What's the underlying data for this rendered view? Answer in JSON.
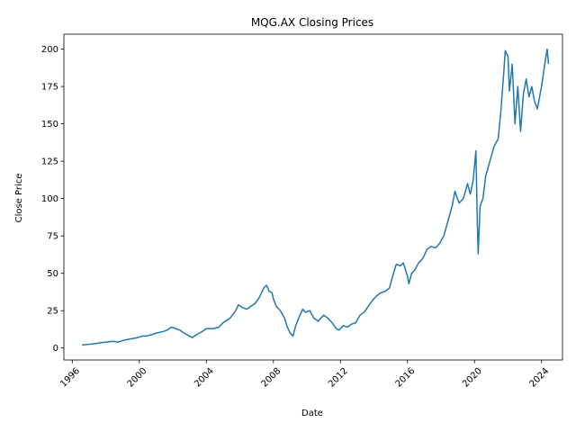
{
  "chart_data": {
    "type": "line",
    "title": "MQG.AX Closing Prices",
    "xlabel": "Date",
    "ylabel": "Close Price",
    "xlim": [
      "1995-07-01",
      "2025-04-01"
    ],
    "ylim": [
      -8,
      210
    ],
    "x_ticks": [
      "1996",
      "2000",
      "2004",
      "2008",
      "2012",
      "2016",
      "2020",
      "2024"
    ],
    "y_ticks": [
      0,
      25,
      50,
      75,
      100,
      125,
      150,
      175,
      200
    ],
    "grid": false,
    "line_color": "#1f77b4",
    "series": [
      {
        "points": [
          [
            "1996-08-01",
            2
          ],
          [
            "1997-01-01",
            2.5
          ],
          [
            "1997-06-01",
            3
          ],
          [
            "1997-09-01",
            3.5
          ],
          [
            "1998-01-01",
            4
          ],
          [
            "1998-06-01",
            4.5
          ],
          [
            "1998-10-01",
            4
          ],
          [
            "1999-01-01",
            5
          ],
          [
            "1999-06-01",
            6
          ],
          [
            "1999-12-01",
            7
          ],
          [
            "2000-03-01",
            8
          ],
          [
            "2000-06-01",
            8
          ],
          [
            "2000-10-01",
            9
          ],
          [
            "2001-01-01",
            10
          ],
          [
            "2001-06-01",
            11
          ],
          [
            "2001-09-01",
            12
          ],
          [
            "2001-12-01",
            14
          ],
          [
            "2002-03-01",
            13
          ],
          [
            "2002-06-01",
            12
          ],
          [
            "2002-09-01",
            10
          ],
          [
            "2003-01-01",
            8
          ],
          [
            "2003-03-01",
            7
          ],
          [
            "2003-06-01",
            9
          ],
          [
            "2003-10-01",
            11
          ],
          [
            "2004-01-01",
            13
          ],
          [
            "2004-06-01",
            13
          ],
          [
            "2004-10-01",
            14
          ],
          [
            "2005-01-01",
            17
          ],
          [
            "2005-06-01",
            20
          ],
          [
            "2005-10-01",
            25
          ],
          [
            "2005-12-01",
            29
          ],
          [
            "2006-03-01",
            27
          ],
          [
            "2006-06-01",
            26
          ],
          [
            "2006-09-01",
            28
          ],
          [
            "2006-12-01",
            30
          ],
          [
            "2007-03-01",
            34
          ],
          [
            "2007-06-01",
            40
          ],
          [
            "2007-08-01",
            42
          ],
          [
            "2007-10-01",
            38
          ],
          [
            "2007-12-01",
            37
          ],
          [
            "2008-01-01",
            33
          ],
          [
            "2008-03-01",
            28
          ],
          [
            "2008-06-01",
            25
          ],
          [
            "2008-09-01",
            20
          ],
          [
            "2008-11-01",
            14
          ],
          [
            "2009-01-01",
            10
          ],
          [
            "2009-03-01",
            8
          ],
          [
            "2009-05-01",
            15
          ],
          [
            "2009-08-01",
            22
          ],
          [
            "2009-10-01",
            26
          ],
          [
            "2009-12-01",
            24
          ],
          [
            "2010-03-01",
            25
          ],
          [
            "2010-06-01",
            20
          ],
          [
            "2010-09-01",
            18
          ],
          [
            "2011-01-01",
            22
          ],
          [
            "2011-04-01",
            20
          ],
          [
            "2011-07-01",
            17
          ],
          [
            "2011-10-01",
            13
          ],
          [
            "2011-12-01",
            12
          ],
          [
            "2012-03-01",
            15
          ],
          [
            "2012-06-01",
            14
          ],
          [
            "2012-09-01",
            16
          ],
          [
            "2012-12-01",
            17
          ],
          [
            "2013-03-01",
            22
          ],
          [
            "2013-06-01",
            24
          ],
          [
            "2013-09-01",
            28
          ],
          [
            "2013-12-01",
            32
          ],
          [
            "2014-03-01",
            35
          ],
          [
            "2014-06-01",
            37
          ],
          [
            "2014-09-01",
            38
          ],
          [
            "2014-12-01",
            40
          ],
          [
            "2015-03-01",
            50
          ],
          [
            "2015-05-01",
            56
          ],
          [
            "2015-08-01",
            55
          ],
          [
            "2015-10-01",
            57
          ],
          [
            "2016-01-01",
            48
          ],
          [
            "2016-02-01",
            43
          ],
          [
            "2016-04-01",
            50
          ],
          [
            "2016-06-01",
            52
          ],
          [
            "2016-09-01",
            57
          ],
          [
            "2016-12-01",
            60
          ],
          [
            "2017-03-01",
            66
          ],
          [
            "2017-06-01",
            68
          ],
          [
            "2017-09-01",
            67
          ],
          [
            "2017-12-01",
            70
          ],
          [
            "2018-03-01",
            75
          ],
          [
            "2018-06-01",
            85
          ],
          [
            "2018-09-01",
            95
          ],
          [
            "2018-11-01",
            105
          ],
          [
            "2018-12-01",
            102
          ],
          [
            "2019-02-01",
            97
          ],
          [
            "2019-05-01",
            100
          ],
          [
            "2019-08-01",
            110
          ],
          [
            "2019-10-01",
            103
          ],
          [
            "2019-12-01",
            112
          ],
          [
            "2020-02-01",
            132
          ],
          [
            "2020-03-01",
            85
          ],
          [
            "2020-03-20",
            63
          ],
          [
            "2020-05-01",
            95
          ],
          [
            "2020-07-01",
            100
          ],
          [
            "2020-09-01",
            115
          ],
          [
            "2020-12-01",
            125
          ],
          [
            "2021-03-01",
            135
          ],
          [
            "2021-06-01",
            140
          ],
          [
            "2021-08-01",
            160
          ],
          [
            "2021-10-01",
            185
          ],
          [
            "2021-11-01",
            199
          ],
          [
            "2022-01-01",
            195
          ],
          [
            "2022-02-01",
            172
          ],
          [
            "2022-04-01",
            190
          ],
          [
            "2022-06-01",
            150
          ],
          [
            "2022-08-01",
            175
          ],
          [
            "2022-10-01",
            145
          ],
          [
            "2022-12-01",
            170
          ],
          [
            "2023-02-01",
            180
          ],
          [
            "2023-04-01",
            168
          ],
          [
            "2023-06-01",
            175
          ],
          [
            "2023-08-01",
            165
          ],
          [
            "2023-10-01",
            160
          ],
          [
            "2023-12-01",
            170
          ],
          [
            "2024-01-01",
            175
          ],
          [
            "2024-03-01",
            188
          ],
          [
            "2024-05-01",
            200
          ],
          [
            "2024-06-01",
            190
          ]
        ]
      }
    ]
  }
}
